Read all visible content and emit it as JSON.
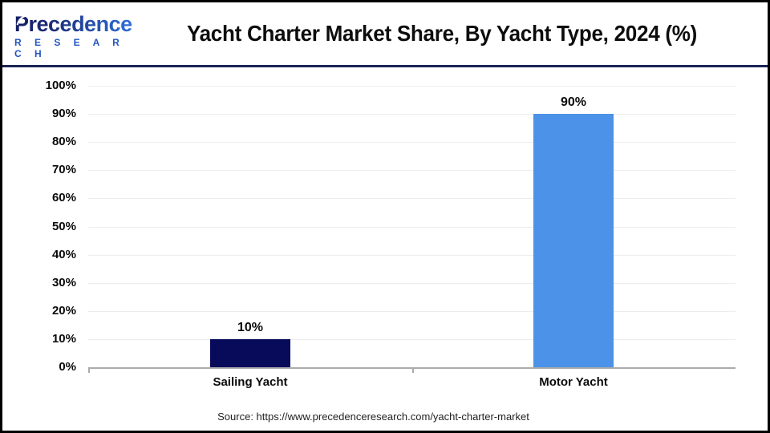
{
  "header": {
    "title": "Yacht Charter Market Share, By Yacht Type, 2024 (%)"
  },
  "logo": {
    "brand_line1": "Precedence",
    "brand_line2": "R E S E A R C H",
    "colors": {
      "brand_navy": "#141d64",
      "brand_blue": "#2f6fd8",
      "research_blue": "#2254c4"
    }
  },
  "chart_data": {
    "type": "bar",
    "title": "Yacht Charter Market Share, By Yacht Type, 2024 (%)",
    "categories": [
      "Sailing Yacht",
      "Motor Yacht"
    ],
    "values": [
      10,
      90
    ],
    "value_labels": [
      "10%",
      "90%"
    ],
    "bar_colors": [
      "#080a5a",
      "#4b92e8"
    ],
    "xlabel": "",
    "ylabel": "",
    "ylim": [
      0,
      100
    ],
    "ytick_step": 10,
    "ytick_labels": [
      "0%",
      "10%",
      "20%",
      "30%",
      "40%",
      "50%",
      "60%",
      "70%",
      "80%",
      "90%",
      "100%"
    ],
    "grid": "horizontal",
    "legend": "none",
    "accent_divider_color": "#1b2456",
    "axis_color": "#ababab",
    "gridline_color": "#ededed"
  },
  "footer": {
    "source": "Source: https://www.precedenceresearch.com/yacht-charter-market"
  }
}
